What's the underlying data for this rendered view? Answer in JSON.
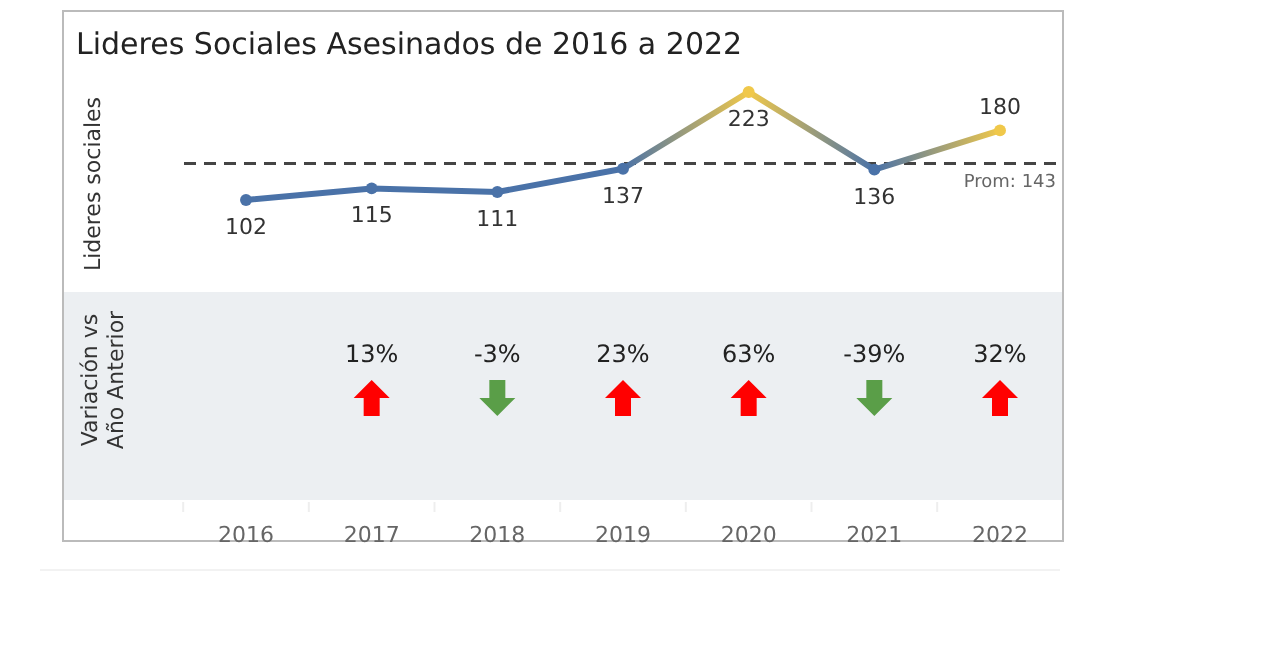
{
  "chart_data": [
    {
      "type": "line",
      "title": "Lideres Sociales Asesinados de 2016 a 2022",
      "ylabel": "Lideres sociales",
      "categories": [
        "2016",
        "2017",
        "2018",
        "2019",
        "2020",
        "2021",
        "2022"
      ],
      "series": [
        {
          "values": [
            102,
            115,
            111,
            137,
            223,
            136,
            180
          ],
          "colors": [
            "#4a72a8",
            "#4a72a8",
            "#4a72a8",
            "#4a72a8",
            "#f0c84a",
            "#4a72a8",
            "#f0c84a"
          ]
        }
      ],
      "data_labels": true,
      "marker": "circle",
      "line_style": "solid",
      "ref_lines": [
        {
          "axis": "y",
          "value": 143,
          "label": "Prom: 143",
          "color": "#444444",
          "line_style": "dashed"
        }
      ]
    },
    {
      "type": "other",
      "ylabel": "Variación vs Año Anterior",
      "values": [
        null,
        13,
        -3,
        23,
        63,
        -39,
        32
      ],
      "value_labels": [
        null,
        "13%",
        "-3%",
        "23%",
        "63%",
        "-39%",
        "32%"
      ],
      "colors": [
        null,
        "#ff0000",
        "#5a9e48",
        "#ff0000",
        "#ff0000",
        "#5a9e48",
        "#ff0000"
      ]
    }
  ]
}
